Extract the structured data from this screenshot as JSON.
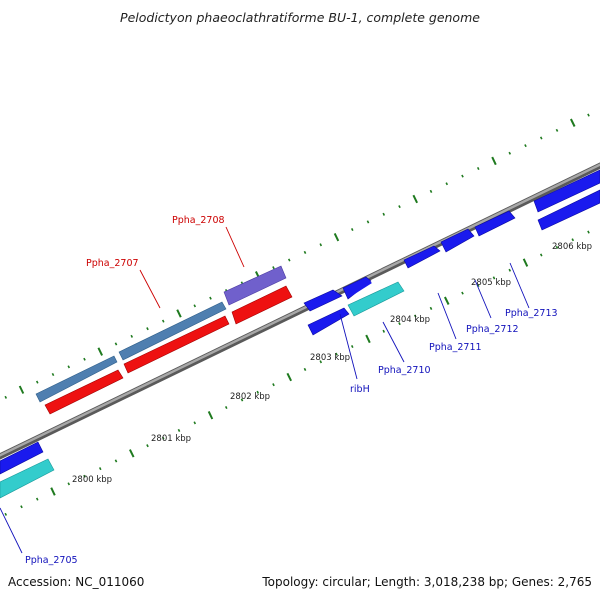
{
  "title": "Pelodictyon phaeoclathratiforme BU-1, complete genome",
  "accession": "Accession: NC_011060",
  "summary": "Topology: circular; Length: 3,018,238 bp; Genes: 2,765",
  "colors": {
    "backbone": "#8c8c8c",
    "tick": "#1f7a1f",
    "cds_blue": "#1a1aee",
    "cds_cyan": "#33cccc",
    "rrna_red": "#ee1111",
    "steel_blue": "#4f7fb0",
    "purple": "#7060cc",
    "label_blue": "#1111bb",
    "label_red": "#cc0000"
  },
  "scale_labels": [
    "2800 kbp",
    "2801 kbp",
    "2802 kbp",
    "2803 kbp",
    "2804 kbp",
    "2805 kbp",
    "2806 kbp"
  ],
  "gene_labels": [
    {
      "text": "Ppha_2708",
      "color": "red"
    },
    {
      "text": "Ppha_2707",
      "color": "red"
    },
    {
      "text": "ribH",
      "color": "blue"
    },
    {
      "text": "Ppha_2710",
      "color": "blue"
    },
    {
      "text": "Ppha_2711",
      "color": "blue"
    },
    {
      "text": "Ppha_2712",
      "color": "blue"
    },
    {
      "text": "Ppha_2713",
      "color": "blue"
    },
    {
      "text": "Ppha_2705",
      "color": "blue"
    }
  ]
}
